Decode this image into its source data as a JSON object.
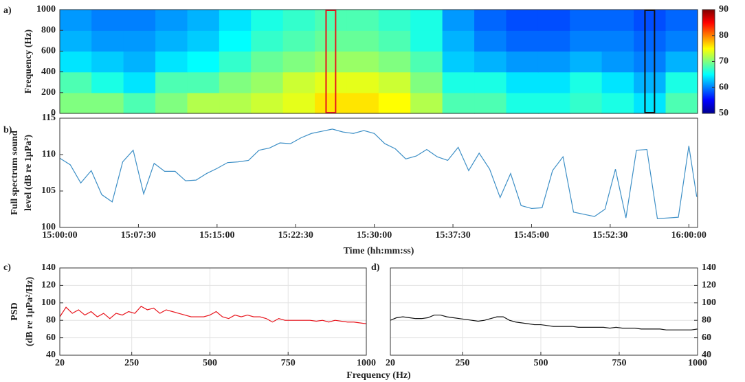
{
  "chart_data": [
    {
      "type": "heatmap",
      "panel": "a)",
      "ylabel": [
        "Frequency (Hz)"
      ],
      "categories": [
        null,
        null,
        null,
        null,
        null,
        null,
        null,
        null,
        null,
        null,
        null,
        null,
        null,
        null,
        null,
        null,
        null,
        null,
        null,
        null
      ],
      "ybins": [
        0,
        200,
        400,
        600,
        800,
        1000
      ],
      "z": [
        [
          70,
          70,
          68,
          70,
          72,
          72,
          73,
          74,
          76,
          76,
          75,
          72,
          68,
          68,
          66,
          66,
          67,
          66,
          64,
          68
        ],
        [
          68,
          66,
          64,
          68,
          68,
          70,
          71,
          73,
          74,
          74,
          73,
          70,
          66,
          66,
          64,
          64,
          66,
          64,
          62,
          66
        ],
        [
          64,
          63,
          62,
          64,
          65,
          67,
          69,
          70,
          71,
          71,
          70,
          68,
          63,
          62,
          61,
          61,
          62,
          61,
          60,
          62
        ],
        [
          62,
          61,
          61,
          62,
          63,
          65,
          67,
          68,
          69,
          69,
          68,
          66,
          62,
          60,
          59,
          59,
          60,
          60,
          59,
          60
        ],
        [
          61,
          60,
          60,
          61,
          62,
          64,
          66,
          67,
          68,
          68,
          67,
          66,
          61,
          59,
          58,
          58,
          59,
          59,
          58,
          59
        ]
      ],
      "ylim": [
        0,
        1000
      ],
      "yticks": [
        0,
        200,
        400,
        600,
        800,
        1000
      ],
      "clim": [
        50,
        90
      ],
      "cticks": [
        50,
        60,
        70,
        80,
        90
      ],
      "highlights": [
        {
          "index": 8,
          "color": "#e8141c"
        },
        {
          "index": 18,
          "color": "#111111"
        }
      ]
    },
    {
      "type": "line",
      "panel": "b)",
      "ylabel": [
        "Full spectrum sound",
        "level (dB re 1μPa²)"
      ],
      "xlabel": "Time (hh:mm:ss)",
      "color": "#3d8fc6",
      "grid": false,
      "yaxis_side": "left",
      "x": [
        "15:00:00",
        "15:01:00",
        "15:02:00",
        "15:03:00",
        "15:04:00",
        "15:05:00",
        "15:06:00",
        "15:07:00",
        "15:08:00",
        "15:09:00",
        "15:10:00",
        "15:11:00",
        "15:12:00",
        "15:13:00",
        "15:14:00",
        "15:15:00",
        "15:16:00",
        "15:17:00",
        "15:18:00",
        "15:19:00",
        "15:20:00",
        "15:21:00",
        "15:22:00",
        "15:23:00",
        "15:24:00",
        "15:25:00",
        "15:26:00",
        "15:27:00",
        "15:28:00",
        "15:29:00",
        "15:30:00",
        "15:31:00",
        "15:32:00",
        "15:33:00",
        "15:34:00",
        "15:35:00",
        "15:36:00",
        "15:37:00",
        "15:38:00",
        "15:39:00",
        "15:40:00",
        "15:41:00",
        "15:42:00",
        "15:43:00",
        "15:44:00",
        "15:45:00",
        "15:46:00",
        "15:47:00",
        "15:48:00",
        "15:49:00",
        "15:50:00",
        "15:51:00",
        "15:52:00",
        "15:53:00",
        "15:54:00",
        "15:55:00",
        "15:56:00",
        "15:57:00",
        "15:58:00",
        "15:59:00",
        "16:00:00",
        "16:00:45"
      ],
      "values": [
        109.5,
        108.6,
        106.1,
        107.8,
        104.5,
        103.5,
        109.0,
        110.6,
        104.6,
        108.8,
        107.7,
        107.7,
        106.4,
        106.5,
        107.4,
        108.1,
        108.9,
        109.0,
        109.2,
        110.6,
        110.9,
        111.6,
        111.5,
        112.3,
        112.9,
        113.2,
        113.5,
        113.1,
        112.9,
        113.3,
        112.9,
        111.5,
        110.8,
        109.4,
        109.8,
        110.7,
        109.7,
        109.2,
        111.0,
        107.8,
        110.2,
        108.0,
        104.1,
        107.4,
        103.0,
        102.6,
        102.7,
        107.8,
        109.7,
        102.1,
        101.8,
        101.5,
        102.5,
        108.0,
        101.3,
        110.6,
        110.7,
        101.2,
        101.3,
        101.4,
        111.2,
        104.2
      ],
      "xlim": [
        "15:00:00",
        "16:00:50"
      ],
      "xticks": [
        "15:00:00",
        "15:07:30",
        "15:15:00",
        "15:22:30",
        "15:30:00",
        "15:37:30",
        "15:45:00",
        "15:52:30",
        "16:00:00"
      ],
      "ylim": [
        100,
        115
      ],
      "yticks": [
        100,
        105,
        110,
        115
      ]
    },
    {
      "type": "line",
      "panel": "c)",
      "ylabel": [
        "PSD",
        "(dB re 1μPa²/Hz)"
      ],
      "xlabel": "Frequency (Hz)",
      "color": "#e8141c",
      "grid": true,
      "yaxis_side": "left",
      "x": [
        20,
        40,
        60,
        80,
        100,
        120,
        140,
        160,
        180,
        200,
        220,
        240,
        260,
        280,
        300,
        320,
        340,
        360,
        380,
        400,
        420,
        440,
        460,
        480,
        500,
        520,
        540,
        560,
        580,
        600,
        620,
        640,
        660,
        680,
        700,
        720,
        740,
        760,
        780,
        800,
        820,
        840,
        860,
        880,
        900,
        920,
        940,
        960,
        980,
        1000
      ],
      "values": [
        84,
        95,
        88,
        92,
        86,
        90,
        84,
        88,
        82,
        88,
        86,
        90,
        88,
        96,
        92,
        94,
        88,
        92,
        90,
        88,
        86,
        84,
        84,
        84,
        86,
        90,
        84,
        82,
        86,
        84,
        86,
        84,
        84,
        82,
        78,
        82,
        80,
        80,
        80,
        80,
        80,
        79,
        80,
        78,
        80,
        79,
        78,
        78,
        77,
        76
      ],
      "xlim": [
        20,
        1000
      ],
      "xticks": [
        20,
        250,
        500,
        750,
        1000
      ],
      "ylim": [
        40,
        140
      ],
      "yticks": [
        40,
        60,
        80,
        100,
        120,
        140
      ]
    },
    {
      "type": "line",
      "panel": "d)",
      "color": "#111111",
      "grid": true,
      "yaxis_side": "right",
      "x": [
        20,
        40,
        60,
        80,
        100,
        120,
        140,
        160,
        180,
        200,
        220,
        240,
        260,
        280,
        300,
        320,
        340,
        360,
        380,
        400,
        420,
        440,
        460,
        480,
        500,
        520,
        540,
        560,
        580,
        600,
        620,
        640,
        660,
        680,
        700,
        720,
        740,
        760,
        780,
        800,
        820,
        840,
        860,
        880,
        900,
        920,
        940,
        960,
        980,
        1000
      ],
      "values": [
        80,
        83,
        84,
        83,
        82,
        82,
        83,
        86,
        86,
        84,
        83,
        82,
        81,
        80,
        79,
        80,
        82,
        84,
        84,
        80,
        78,
        77,
        76,
        75,
        75,
        74,
        73,
        73,
        73,
        73,
        72,
        72,
        72,
        72,
        72,
        71,
        72,
        71,
        71,
        71,
        70,
        70,
        70,
        70,
        69,
        69,
        69,
        69,
        69,
        70
      ],
      "xlim": [
        20,
        1000
      ],
      "xticks": [
        20,
        250,
        500,
        750,
        1000
      ],
      "ylim": [
        40,
        140
      ],
      "yticks": [
        40,
        60,
        80,
        100,
        120,
        140
      ]
    }
  ]
}
